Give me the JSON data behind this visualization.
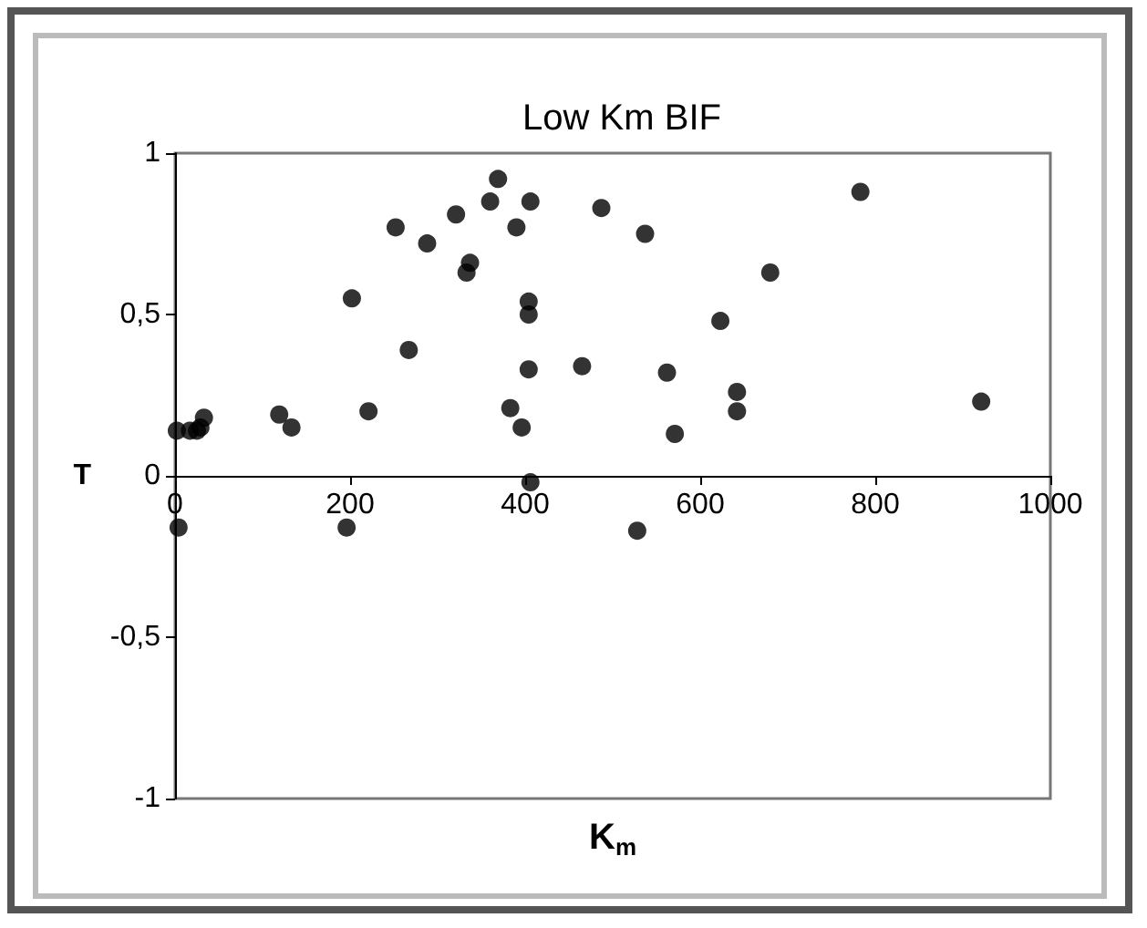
{
  "chart_data": {
    "type": "scatter",
    "title": "Low Km BIF",
    "xlabel": "K$_{m}$",
    "ylabel": "T",
    "x": [
      2,
      17,
      25,
      29,
      33,
      119,
      133,
      202,
      221,
      252,
      267,
      288,
      321,
      337,
      333,
      360,
      369,
      390,
      406,
      404,
      404,
      404,
      383,
      396,
      406,
      465,
      487,
      537,
      562,
      571,
      623,
      642,
      642,
      680,
      783,
      921,
      4,
      196,
      528
    ],
    "values": [
      0.14,
      0.14,
      0.14,
      0.15,
      0.18,
      0.19,
      0.15,
      0.55,
      0.2,
      0.77,
      0.39,
      0.72,
      0.81,
      0.66,
      0.63,
      0.85,
      0.92,
      0.77,
      0.85,
      0.54,
      0.5,
      0.33,
      0.21,
      0.15,
      -0.02,
      0.34,
      0.83,
      0.75,
      0.32,
      0.13,
      0.48,
      0.26,
      0.2,
      0.63,
      0.88,
      0.23,
      -0.16,
      -0.16,
      -0.17
    ],
    "color": "#000000",
    "marker": "circle",
    "grid": false,
    "xlim": [
      0,
      1000
    ],
    "xticks": [
      0,
      200,
      400,
      600,
      800,
      1000
    ],
    "ylim": [
      -1,
      1
    ],
    "yticks": [
      {
        "value": -1,
        "label": "-1"
      },
      {
        "value": -0.5,
        "label": "-0,5"
      },
      {
        "value": 0,
        "label": "0"
      },
      {
        "value": 0.5,
        "label": "0,5"
      },
      {
        "value": 1,
        "label": "1"
      }
    ]
  }
}
